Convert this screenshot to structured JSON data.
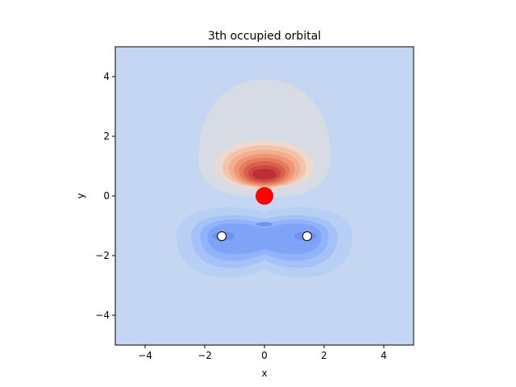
{
  "chart_data": {
    "type": "heatmap",
    "title": "3th occupied orbital",
    "xlabel": "x",
    "ylabel": "y",
    "xlim": [
      -5,
      5
    ],
    "ylim": [
      -5,
      5
    ],
    "xticks": [
      -4,
      -2,
      0,
      2,
      4
    ],
    "yticks": [
      -4,
      -2,
      0,
      2,
      4
    ],
    "xtick_labels": [
      "−4",
      "−2",
      "0",
      "2",
      "4"
    ],
    "ytick_labels": [
      "−4",
      "−2",
      "0",
      "2",
      "4"
    ],
    "grid": false,
    "colormap": "coolwarm",
    "atoms": [
      {
        "element": "O",
        "x": 0.0,
        "y": 0.0,
        "color": "#ff0000"
      },
      {
        "element": "H",
        "x": -1.43,
        "y": -1.35,
        "color": "#ffffff"
      },
      {
        "element": "H",
        "x": 1.43,
        "y": -1.35,
        "color": "#ffffff"
      }
    ],
    "field_lobes": [
      {
        "sign": "positive",
        "center_x": 0.0,
        "center_y": 0.7,
        "peak": 1.0
      },
      {
        "sign": "negative",
        "center_x": -1.43,
        "center_y": -1.35,
        "peak": -0.55
      },
      {
        "sign": "negative",
        "center_x": 1.43,
        "center_y": -1.35,
        "peak": -0.55
      }
    ]
  },
  "colors": {
    "background_level": "#c5d6f2",
    "atom_outline": "#000000"
  }
}
